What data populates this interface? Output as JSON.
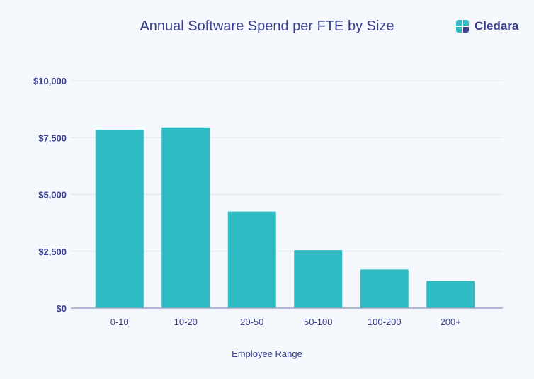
{
  "brand": {
    "name": "Cledara",
    "logo_icon": "cledara-logo-icon"
  },
  "colors": {
    "bar": "#2ebbc4",
    "text": "#3a3f8f",
    "grid": "#dde6ee",
    "axis": "#9aa3c5",
    "background": "#f5f9fd"
  },
  "chart_data": {
    "type": "bar",
    "title": "Annual Software Spend per FTE by Size",
    "xlabel": "Employee Range",
    "ylabel": "",
    "categories": [
      "0-10",
      "10-20",
      "20-50",
      "50-100",
      "100-200",
      "200+"
    ],
    "values": [
      7850,
      7950,
      4250,
      2550,
      1700,
      1200
    ],
    "ylim": [
      0,
      10000
    ],
    "yticks": [
      0,
      2500,
      5000,
      7500,
      10000
    ],
    "ytick_labels": [
      "$0",
      "$2,500",
      "$5,000",
      "$7,500",
      "$10,000"
    ],
    "grid": true,
    "legend": "none"
  }
}
